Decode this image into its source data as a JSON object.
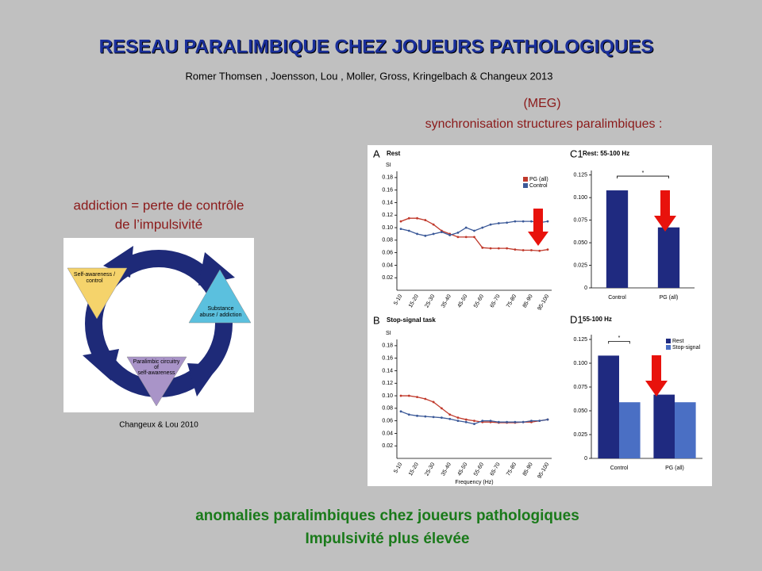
{
  "title": "RESEAU PARALIMBIQUE CHEZ JOUEURS PATHOLOGIQUES",
  "authors": "Romer Thomsen , Joensson, Lou , Moller, Gross, Kringelbach & Changeux 2013",
  "meg": "(MEG)",
  "subtitle": "synchronisation structures paralimbiques :",
  "addiction_lines": [
    "addiction = perte de contrôle",
    "de l’impulsivité"
  ],
  "diagram": {
    "labels": [
      [
        "Self-awareness /",
        "control"
      ],
      [
        "Substance",
        "abuse / addiction"
      ],
      [
        "Paralimbic circuitry",
        "of",
        "self-awareness"
      ]
    ],
    "caption": "Changeux & Lou 2010"
  },
  "conclusion": [
    "anomalies paralimbiques chez joueurs pathologiques",
    "Impulsivité plus élevée"
  ],
  "chart_data": [
    {
      "type": "line",
      "panel": "A",
      "title": "Rest",
      "ylabel": "SI",
      "categories": [
        "5-10",
        null,
        "15-20",
        null,
        "25-30",
        null,
        "35-40",
        null,
        "45-50",
        null,
        "55-60",
        null,
        "65-70",
        null,
        "75-80",
        null,
        "85-90",
        null,
        "95-100"
      ],
      "series": [
        {
          "name": "PG (all)",
          "color": "#c0392b",
          "values": [
            0.11,
            0.115,
            0.115,
            0.112,
            0.105,
            0.095,
            0.09,
            0.085,
            0.085,
            0.085,
            0.068,
            0.067,
            0.067,
            0.067,
            0.065,
            0.064,
            0.064,
            0.063,
            0.065
          ]
        },
        {
          "name": "Control",
          "color": "#3b5998",
          "values": [
            0.098,
            0.095,
            0.09,
            0.087,
            0.09,
            0.093,
            0.088,
            0.092,
            0.1,
            0.095,
            0.1,
            0.105,
            0.107,
            0.108,
            0.11,
            0.11,
            0.11,
            0.108,
            0.11
          ]
        }
      ],
      "ylim": [
        0,
        0.19
      ],
      "yticks": [
        0.02,
        0.04,
        0.06,
        0.08,
        {
          "value": 0.1,
          "label": "0.10"
        },
        0.12,
        0.14,
        0.16,
        0.18
      ],
      "legend": "upper right"
    },
    {
      "type": "line",
      "panel": "B",
      "title": "Stop-signal task",
      "ylabel": "SI",
      "xlabel": "Frequency (Hz)",
      "categories": [
        "5-10",
        null,
        "15-20",
        null,
        "25-30",
        null,
        "35-40",
        null,
        "45-50",
        null,
        "55-60",
        null,
        "65-70",
        null,
        "75-80",
        null,
        "85-90",
        null,
        "95-100"
      ],
      "series": [
        {
          "name": "PG (all)",
          "color": "#c0392b",
          "values": [
            0.1,
            0.1,
            0.098,
            0.095,
            0.09,
            0.08,
            0.07,
            0.065,
            0.062,
            0.06,
            0.058,
            0.058,
            0.057,
            0.057,
            0.057,
            0.058,
            0.058,
            0.06,
            0.062
          ]
        },
        {
          "name": "Control",
          "color": "#3b5998",
          "values": [
            0.075,
            0.07,
            0.068,
            0.067,
            0.066,
            0.065,
            0.063,
            0.06,
            0.058,
            0.055,
            0.06,
            0.06,
            0.058,
            0.058,
            0.058,
            0.058,
            0.06,
            0.06,
            0.062
          ]
        }
      ],
      "ylim": [
        0,
        0.19
      ],
      "yticks": [
        0.02,
        0.04,
        0.06,
        0.08,
        {
          "value": 0.1,
          "label": "0.10"
        },
        0.12,
        0.14,
        0.16,
        0.18
      ]
    },
    {
      "type": "bar",
      "panel": "C1",
      "title": "Rest: 55-100 Hz",
      "categories": [
        "Control",
        "PG (all)"
      ],
      "values": [
        0.108,
        0.067
      ],
      "color": "#1f2a80",
      "annotation": "*",
      "ylim": [
        0,
        0.13
      ],
      "yticks": [
        0,
        0.025,
        {
          "value": 0.05,
          "label": "0.050"
        },
        0.075,
        {
          "value": 0.1,
          "label": "0.100"
        },
        0.125
      ]
    },
    {
      "type": "bar",
      "panel": "D1",
      "title": "55-100 Hz",
      "categories": [
        "Control",
        "PG (all)"
      ],
      "series": [
        {
          "name": "Rest",
          "color": "#1f2a80",
          "values": [
            0.108,
            0.067
          ]
        },
        {
          "name": "Stop-signal",
          "color": "#4a6fc4",
          "values": [
            0.059,
            0.059
          ]
        }
      ],
      "annotation": "*",
      "legend": "upper right",
      "ylim": [
        0,
        0.13
      ],
      "yticks": [
        0,
        0.025,
        {
          "value": 0.05,
          "label": "0.050"
        },
        0.075,
        {
          "value": 0.1,
          "label": "0.100"
        },
        0.125
      ]
    }
  ]
}
